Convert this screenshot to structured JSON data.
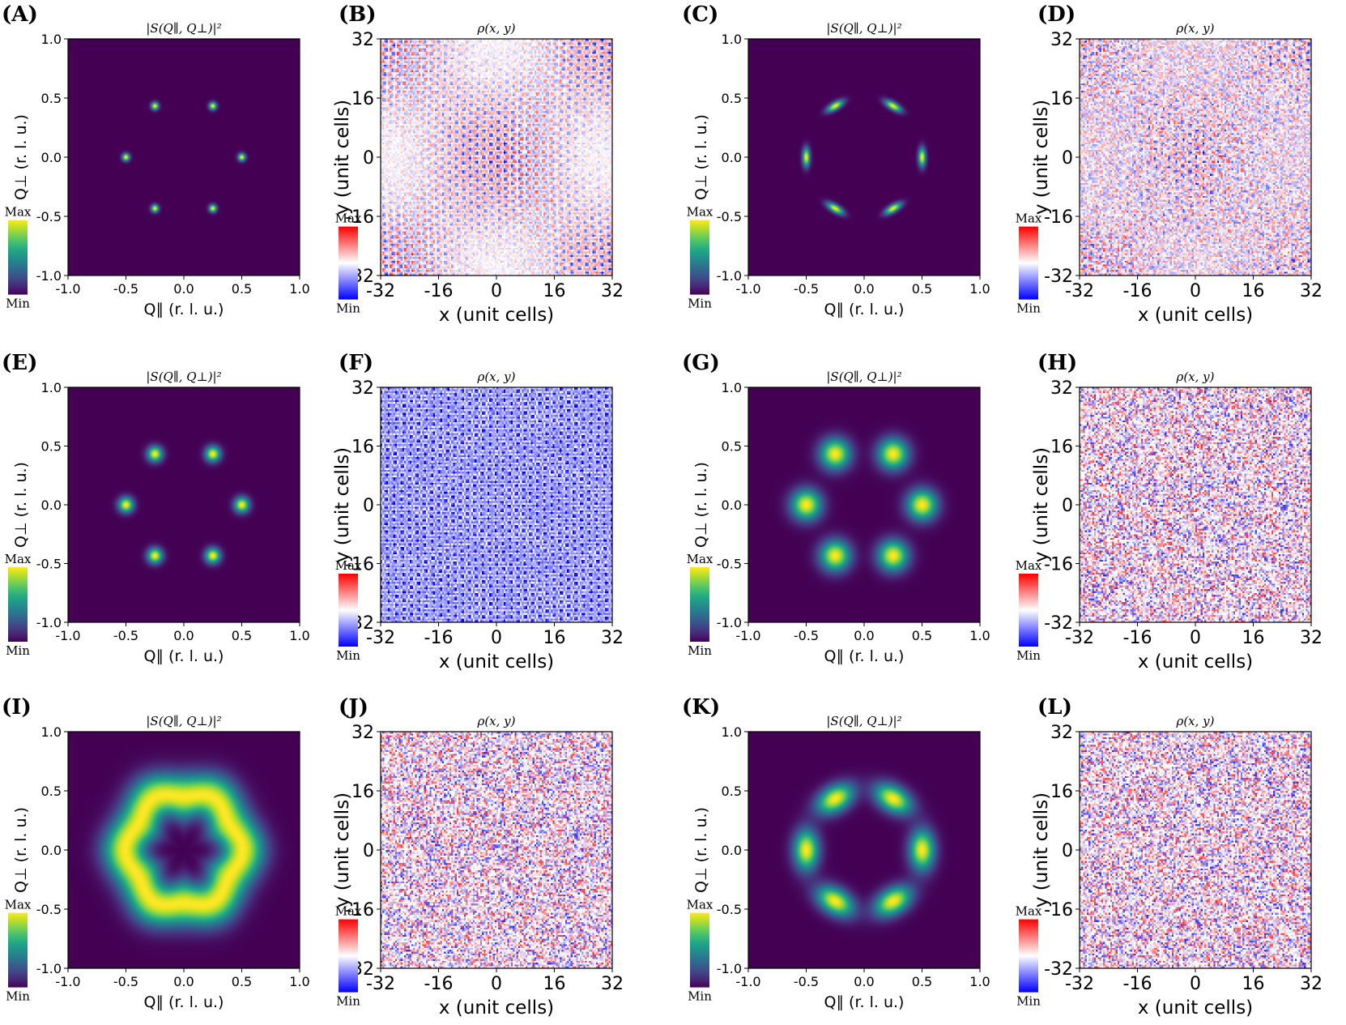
{
  "chart_data": [
    {
      "panel": "(A)",
      "type": "heatmap",
      "title": "|S(Q∥, Q⊥)|²",
      "xlabel": "Q∥ (r. l. u.)",
      "ylabel": "Q⊥ (r. l. u.)",
      "xlim": [
        -1.0,
        1.0
      ],
      "ylim": [
        -1.0,
        1.0
      ],
      "xticks": [
        "-1.0",
        "-0.5",
        "0.0",
        "0.5",
        "1.0"
      ],
      "yticks": [
        "1.0",
        "0.5",
        "0.0",
        "-0.5",
        "-1.0"
      ],
      "colorbar": {
        "max": "Max",
        "min": "Min",
        "cmap": "viridis"
      },
      "peaks": [
        {
          "qx": 0.25,
          "qy": 0.433
        },
        {
          "qx": -0.25,
          "qy": 0.433
        },
        {
          "qx": 0.5,
          "qy": 0.0
        },
        {
          "qx": -0.5,
          "qy": 0.0
        },
        {
          "qx": 0.25,
          "qy": -0.433
        },
        {
          "qx": -0.25,
          "qy": -0.433
        }
      ],
      "peak_width": 0.022,
      "peak_elongation": 1.0
    },
    {
      "panel": "(B)",
      "type": "heatmap",
      "title": "ρ(x, y)",
      "xlabel": "x (unit cells)",
      "ylabel": "y (unit cells)",
      "xlim": [
        -32,
        32
      ],
      "ylim": [
        -32,
        32
      ],
      "xticks": [
        "-32",
        "-16",
        "0",
        "16",
        "32"
      ],
      "yticks": [
        "32",
        "16",
        "0",
        "-16",
        "-32"
      ],
      "colorbar": {
        "max": "Max",
        "min": "Min",
        "cmap": "bwr"
      },
      "pattern": "ordered-stripes"
    },
    {
      "panel": "(C)",
      "type": "heatmap",
      "title": "|S(Q∥, Q⊥)|²",
      "xlabel": "Q∥ (r. l. u.)",
      "ylabel": "Q⊥ (r. l. u.)",
      "xlim": [
        -1.0,
        1.0
      ],
      "ylim": [
        -1.0,
        1.0
      ],
      "xticks": [
        "-1.0",
        "-0.5",
        "0.0",
        "0.5",
        "1.0"
      ],
      "yticks": [
        "1.0",
        "0.5",
        "0.0",
        "-0.5",
        "-1.0"
      ],
      "colorbar": {
        "max": "Max",
        "min": "Min",
        "cmap": "viridis"
      },
      "peaks": [
        {
          "qx": 0.25,
          "qy": 0.433
        },
        {
          "qx": -0.25,
          "qy": 0.433
        },
        {
          "qx": 0.5,
          "qy": 0.0
        },
        {
          "qx": -0.5,
          "qy": 0.0
        },
        {
          "qx": 0.25,
          "qy": -0.433
        },
        {
          "qx": -0.25,
          "qy": -0.433
        }
      ],
      "peak_width": 0.022,
      "peak_elongation": 2.5
    },
    {
      "panel": "(D)",
      "type": "heatmap",
      "title": "ρ(x, y)",
      "xlabel": "x (unit cells)",
      "ylabel": "y (unit cells)",
      "xlim": [
        -32,
        32
      ],
      "ylim": [
        -32,
        32
      ],
      "xticks": [
        "-32",
        "-16",
        "0",
        "16",
        "32"
      ],
      "yticks": [
        "32",
        "16",
        "0",
        "-16",
        "-32"
      ],
      "colorbar": {
        "max": "Max",
        "min": "Min",
        "cmap": "bwr"
      },
      "pattern": "ordered-stripes-disordered"
    },
    {
      "panel": "(E)",
      "type": "heatmap",
      "title": "|S(Q∥, Q⊥)|²",
      "xlabel": "Q∥ (r. l. u.)",
      "ylabel": "Q⊥ (r. l. u.)",
      "xlim": [
        -1.0,
        1.0
      ],
      "ylim": [
        -1.0,
        1.0
      ],
      "xticks": [
        "-1.0",
        "-0.5",
        "0.0",
        "0.5",
        "1.0"
      ],
      "yticks": [
        "1.0",
        "0.5",
        "0.0",
        "-0.5",
        "-1.0"
      ],
      "colorbar": {
        "max": "Max",
        "min": "Min",
        "cmap": "viridis"
      },
      "peaks": [
        {
          "qx": 0.25,
          "qy": 0.433
        },
        {
          "qx": -0.25,
          "qy": 0.433
        },
        {
          "qx": 0.5,
          "qy": 0.0
        },
        {
          "qx": -0.5,
          "qy": 0.0
        },
        {
          "qx": 0.25,
          "qy": -0.433
        },
        {
          "qx": -0.25,
          "qy": -0.433
        }
      ],
      "peak_width": 0.045,
      "peak_elongation": 1.0
    },
    {
      "panel": "(F)",
      "type": "heatmap",
      "title": "ρ(x, y)",
      "xlabel": "x (unit cells)",
      "ylabel": "y (unit cells)",
      "xlim": [
        -32,
        32
      ],
      "ylim": [
        -32,
        32
      ],
      "xticks": [
        "-32",
        "-16",
        "0",
        "16",
        "32"
      ],
      "yticks": [
        "32",
        "16",
        "0",
        "-16",
        "-32"
      ],
      "colorbar": {
        "max": "Max",
        "min": "Min",
        "cmap": "bwr"
      },
      "pattern": "blue-hexagonal"
    },
    {
      "panel": "(G)",
      "type": "heatmap",
      "title": "|S(Q∥, Q⊥)|²",
      "xlabel": "Q∥ (r. l. u.)",
      "ylabel": "Q⊥ (r. l. u.)",
      "xlim": [
        -1.0,
        1.0
      ],
      "ylim": [
        -1.0,
        1.0
      ],
      "xticks": [
        "-1.0",
        "-0.5",
        "0.0",
        "0.5",
        "1.0"
      ],
      "yticks": [
        "1.0",
        "0.5",
        "0.0",
        "-0.5",
        "-1.0"
      ],
      "colorbar": {
        "max": "Max",
        "min": "Min",
        "cmap": "viridis"
      },
      "peaks": [
        {
          "qx": 0.25,
          "qy": 0.433
        },
        {
          "qx": -0.25,
          "qy": 0.433
        },
        {
          "qx": 0.5,
          "qy": 0.0
        },
        {
          "qx": -0.5,
          "qy": 0.0
        },
        {
          "qx": 0.25,
          "qy": -0.433
        },
        {
          "qx": -0.25,
          "qy": -0.433
        }
      ],
      "peak_width": 0.09,
      "peak_elongation": 1.0
    },
    {
      "panel": "(H)",
      "type": "heatmap",
      "title": "ρ(x, y)",
      "xlabel": "x (unit cells)",
      "ylabel": "y (unit cells)",
      "xlim": [
        -32,
        32
      ],
      "ylim": [
        -32,
        32
      ],
      "xticks": [
        "-32",
        "-16",
        "0",
        "16",
        "32"
      ],
      "yticks": [
        "32",
        "16",
        "0",
        "-16",
        "-32"
      ],
      "colorbar": {
        "max": "Max",
        "min": "Min",
        "cmap": "bwr"
      },
      "pattern": "noise"
    },
    {
      "panel": "(I)",
      "type": "heatmap",
      "title": "|S(Q∥, Q⊥)|²",
      "xlabel": "Q∥ (r. l. u.)",
      "ylabel": "Q⊥ (r. l. u.)",
      "xlim": [
        -1.0,
        1.0
      ],
      "ylim": [
        -1.0,
        1.0
      ],
      "xticks": [
        "-1.0",
        "-0.5",
        "0.0",
        "0.5",
        "1.0"
      ],
      "yticks": [
        "1.0",
        "0.5",
        "0.0",
        "-0.5",
        "-1.0"
      ],
      "colorbar": {
        "max": "Max",
        "min": "Min",
        "cmap": "viridis"
      },
      "ring": {
        "radius": 0.48,
        "width": 0.13
      }
    },
    {
      "panel": "(J)",
      "type": "heatmap",
      "title": "ρ(x, y)",
      "xlabel": "x (unit cells)",
      "ylabel": "y (unit cells)",
      "xlim": [
        -32,
        32
      ],
      "ylim": [
        -32,
        32
      ],
      "xticks": [
        "-32",
        "-16",
        "0",
        "16",
        "32"
      ],
      "yticks": [
        "32",
        "16",
        "0",
        "-16",
        "-32"
      ],
      "colorbar": {
        "max": "Max",
        "min": "Min",
        "cmap": "bwr"
      },
      "pattern": "noise"
    },
    {
      "panel": "(K)",
      "type": "heatmap",
      "title": "|S(Q∥, Q⊥)|²",
      "xlabel": "Q∥ (r. l. u.)",
      "ylabel": "Q⊥ (r. l. u.)",
      "xlim": [
        -1.0,
        1.0
      ],
      "ylim": [
        -1.0,
        1.0
      ],
      "xticks": [
        "-1.0",
        "-0.5",
        "0.0",
        "0.5",
        "1.0"
      ],
      "yticks": [
        "1.0",
        "0.5",
        "0.0",
        "-0.5",
        "-1.0"
      ],
      "colorbar": {
        "max": "Max",
        "min": "Min",
        "cmap": "viridis"
      },
      "peaks": [
        {
          "qx": 0.25,
          "qy": 0.433
        },
        {
          "qx": -0.25,
          "qy": 0.433
        },
        {
          "qx": 0.5,
          "qy": 0.0
        },
        {
          "qx": -0.5,
          "qy": 0.0
        },
        {
          "qx": 0.25,
          "qy": -0.433
        },
        {
          "qx": -0.25,
          "qy": -0.433
        }
      ],
      "peak_width": 0.075,
      "peak_elongation": 1.6
    },
    {
      "panel": "(L)",
      "type": "heatmap",
      "title": "ρ(x, y)",
      "xlabel": "x (unit cells)",
      "ylabel": "y (unit cells)",
      "xlim": [
        -32,
        32
      ],
      "ylim": [
        -32,
        32
      ],
      "xticks": [
        "-32",
        "-16",
        "0",
        "16",
        "32"
      ],
      "yticks": [
        "32",
        "16",
        "0",
        "-16",
        "-32"
      ],
      "colorbar": {
        "max": "Max",
        "min": "Min",
        "cmap": "bwr"
      },
      "pattern": "noise"
    }
  ]
}
